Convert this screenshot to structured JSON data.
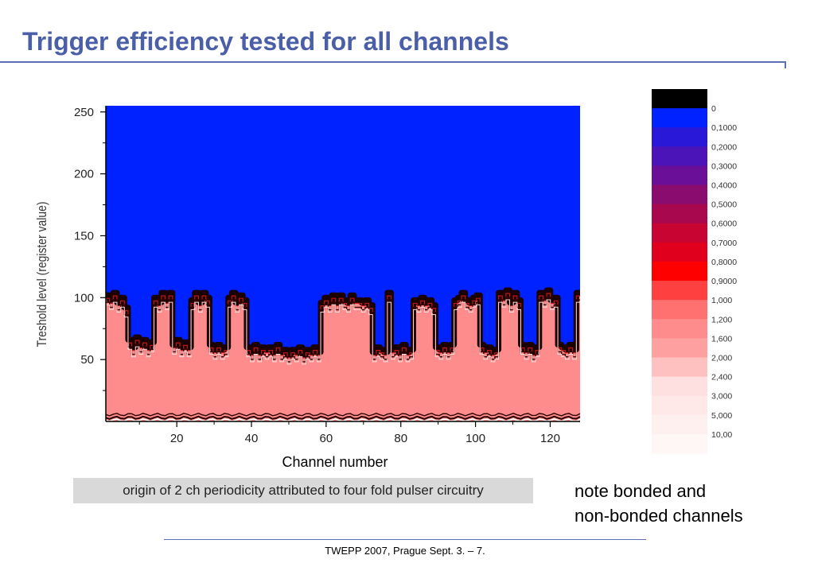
{
  "slide": {
    "title": "Trigger efficiency tested for all channels",
    "caption": "origin of 2 ch periodicity attributed to four fold pulser circuitry",
    "note_line1": "note bonded and",
    "note_line2": "non-bonded channels",
    "footer": "TWEPP 2007, Prague Sept. 3. – 7."
  },
  "colors": {
    "title": "#4B5FA8",
    "rule": "#5A6FB8",
    "above_threshold": "#0022FF",
    "below_threshold": "#FF8C8C",
    "boundary": "#1A0000"
  },
  "chart_data": {
    "type": "heatmap",
    "xlabel": "Channel number",
    "ylabel": "Treshold level (register value)",
    "xlim": [
      1,
      128
    ],
    "ylim": [
      0,
      255
    ],
    "xticks": [
      20,
      40,
      60,
      80,
      100,
      120
    ],
    "yticks": [
      50,
      100,
      150,
      200,
      250
    ],
    "grid": false,
    "boundary_channels": [
      1,
      2,
      3,
      4,
      5,
      6,
      7,
      8,
      9,
      10,
      11,
      12,
      13,
      14,
      15,
      16,
      17,
      18,
      19,
      20,
      21,
      22,
      23,
      24,
      25,
      26,
      27,
      28,
      29,
      30,
      31,
      32,
      33,
      34,
      35,
      36,
      37,
      38,
      39,
      40,
      41,
      42,
      43,
      44,
      45,
      46,
      47,
      48,
      49,
      50,
      51,
      52,
      53,
      54,
      55,
      56,
      57,
      58,
      59,
      60,
      61,
      62,
      63,
      64,
      65,
      66,
      67,
      68,
      69,
      70,
      71,
      72,
      73,
      74,
      75,
      76,
      77,
      78,
      79,
      80,
      81,
      82,
      83,
      84,
      85,
      86,
      87,
      88,
      89,
      90,
      91,
      92,
      93,
      94,
      95,
      96,
      97,
      98,
      99,
      100,
      101,
      102,
      103,
      104,
      105,
      106,
      107,
      108,
      109,
      110,
      111,
      112,
      113,
      114,
      115,
      116,
      117,
      118,
      119,
      120,
      121,
      122,
      123,
      124,
      125,
      126,
      127,
      128
    ],
    "boundary_levels": [
      102,
      98,
      104,
      96,
      100,
      92,
      66,
      60,
      68,
      62,
      66,
      60,
      64,
      100,
      96,
      104,
      98,
      104,
      62,
      66,
      60,
      64,
      60,
      98,
      104,
      96,
      104,
      100,
      62,
      58,
      62,
      58,
      60,
      100,
      104,
      96,
      102,
      98,
      60,
      56,
      62,
      56,
      60,
      58,
      60,
      56,
      62,
      56,
      58,
      54,
      58,
      56,
      60,
      54,
      58,
      56,
      60,
      56,
      96,
      100,
      96,
      102,
      96,
      102,
      98,
      96,
      102,
      98,
      98,
      96,
      98,
      94,
      56,
      60,
      58,
      56,
      104,
      58,
      60,
      56,
      62,
      56,
      58,
      98,
      96,
      100,
      96,
      98,
      94,
      60,
      58,
      62,
      58,
      62,
      98,
      100,
      104,
      98,
      96,
      100,
      102,
      62,
      58,
      60,
      56,
      58,
      104,
      100,
      106,
      96,
      104,
      98,
      62,
      58,
      62,
      56,
      60,
      104,
      100,
      106,
      98,
      100,
      62,
      60,
      58,
      62,
      58,
      104,
      100,
      102
    ],
    "noise_level": 3,
    "colorbar_labels": [
      "0",
      "0,1000",
      "0,2000",
      "0,3000",
      "0,4000",
      "0,5000",
      "0,6000",
      "0,7000",
      "0,8000",
      "0,9000",
      "1,000",
      "1,200",
      "1,600",
      "2,000",
      "2,400",
      "3,000",
      "5,000",
      "10,00"
    ],
    "colorbar_colors": [
      "#000000",
      "#0022FF",
      "#2A18D8",
      "#4A14B8",
      "#6A1098",
      "#8A0C6E",
      "#A8084E",
      "#C80432",
      "#E0001E",
      "#FF0000",
      "#FF4040",
      "#FF7070",
      "#FF8C8C",
      "#FFA0A0",
      "#FFC0C0",
      "#FFE0E0",
      "#FFE8E8",
      "#FFF0F0",
      "#FFF6F6"
    ]
  }
}
